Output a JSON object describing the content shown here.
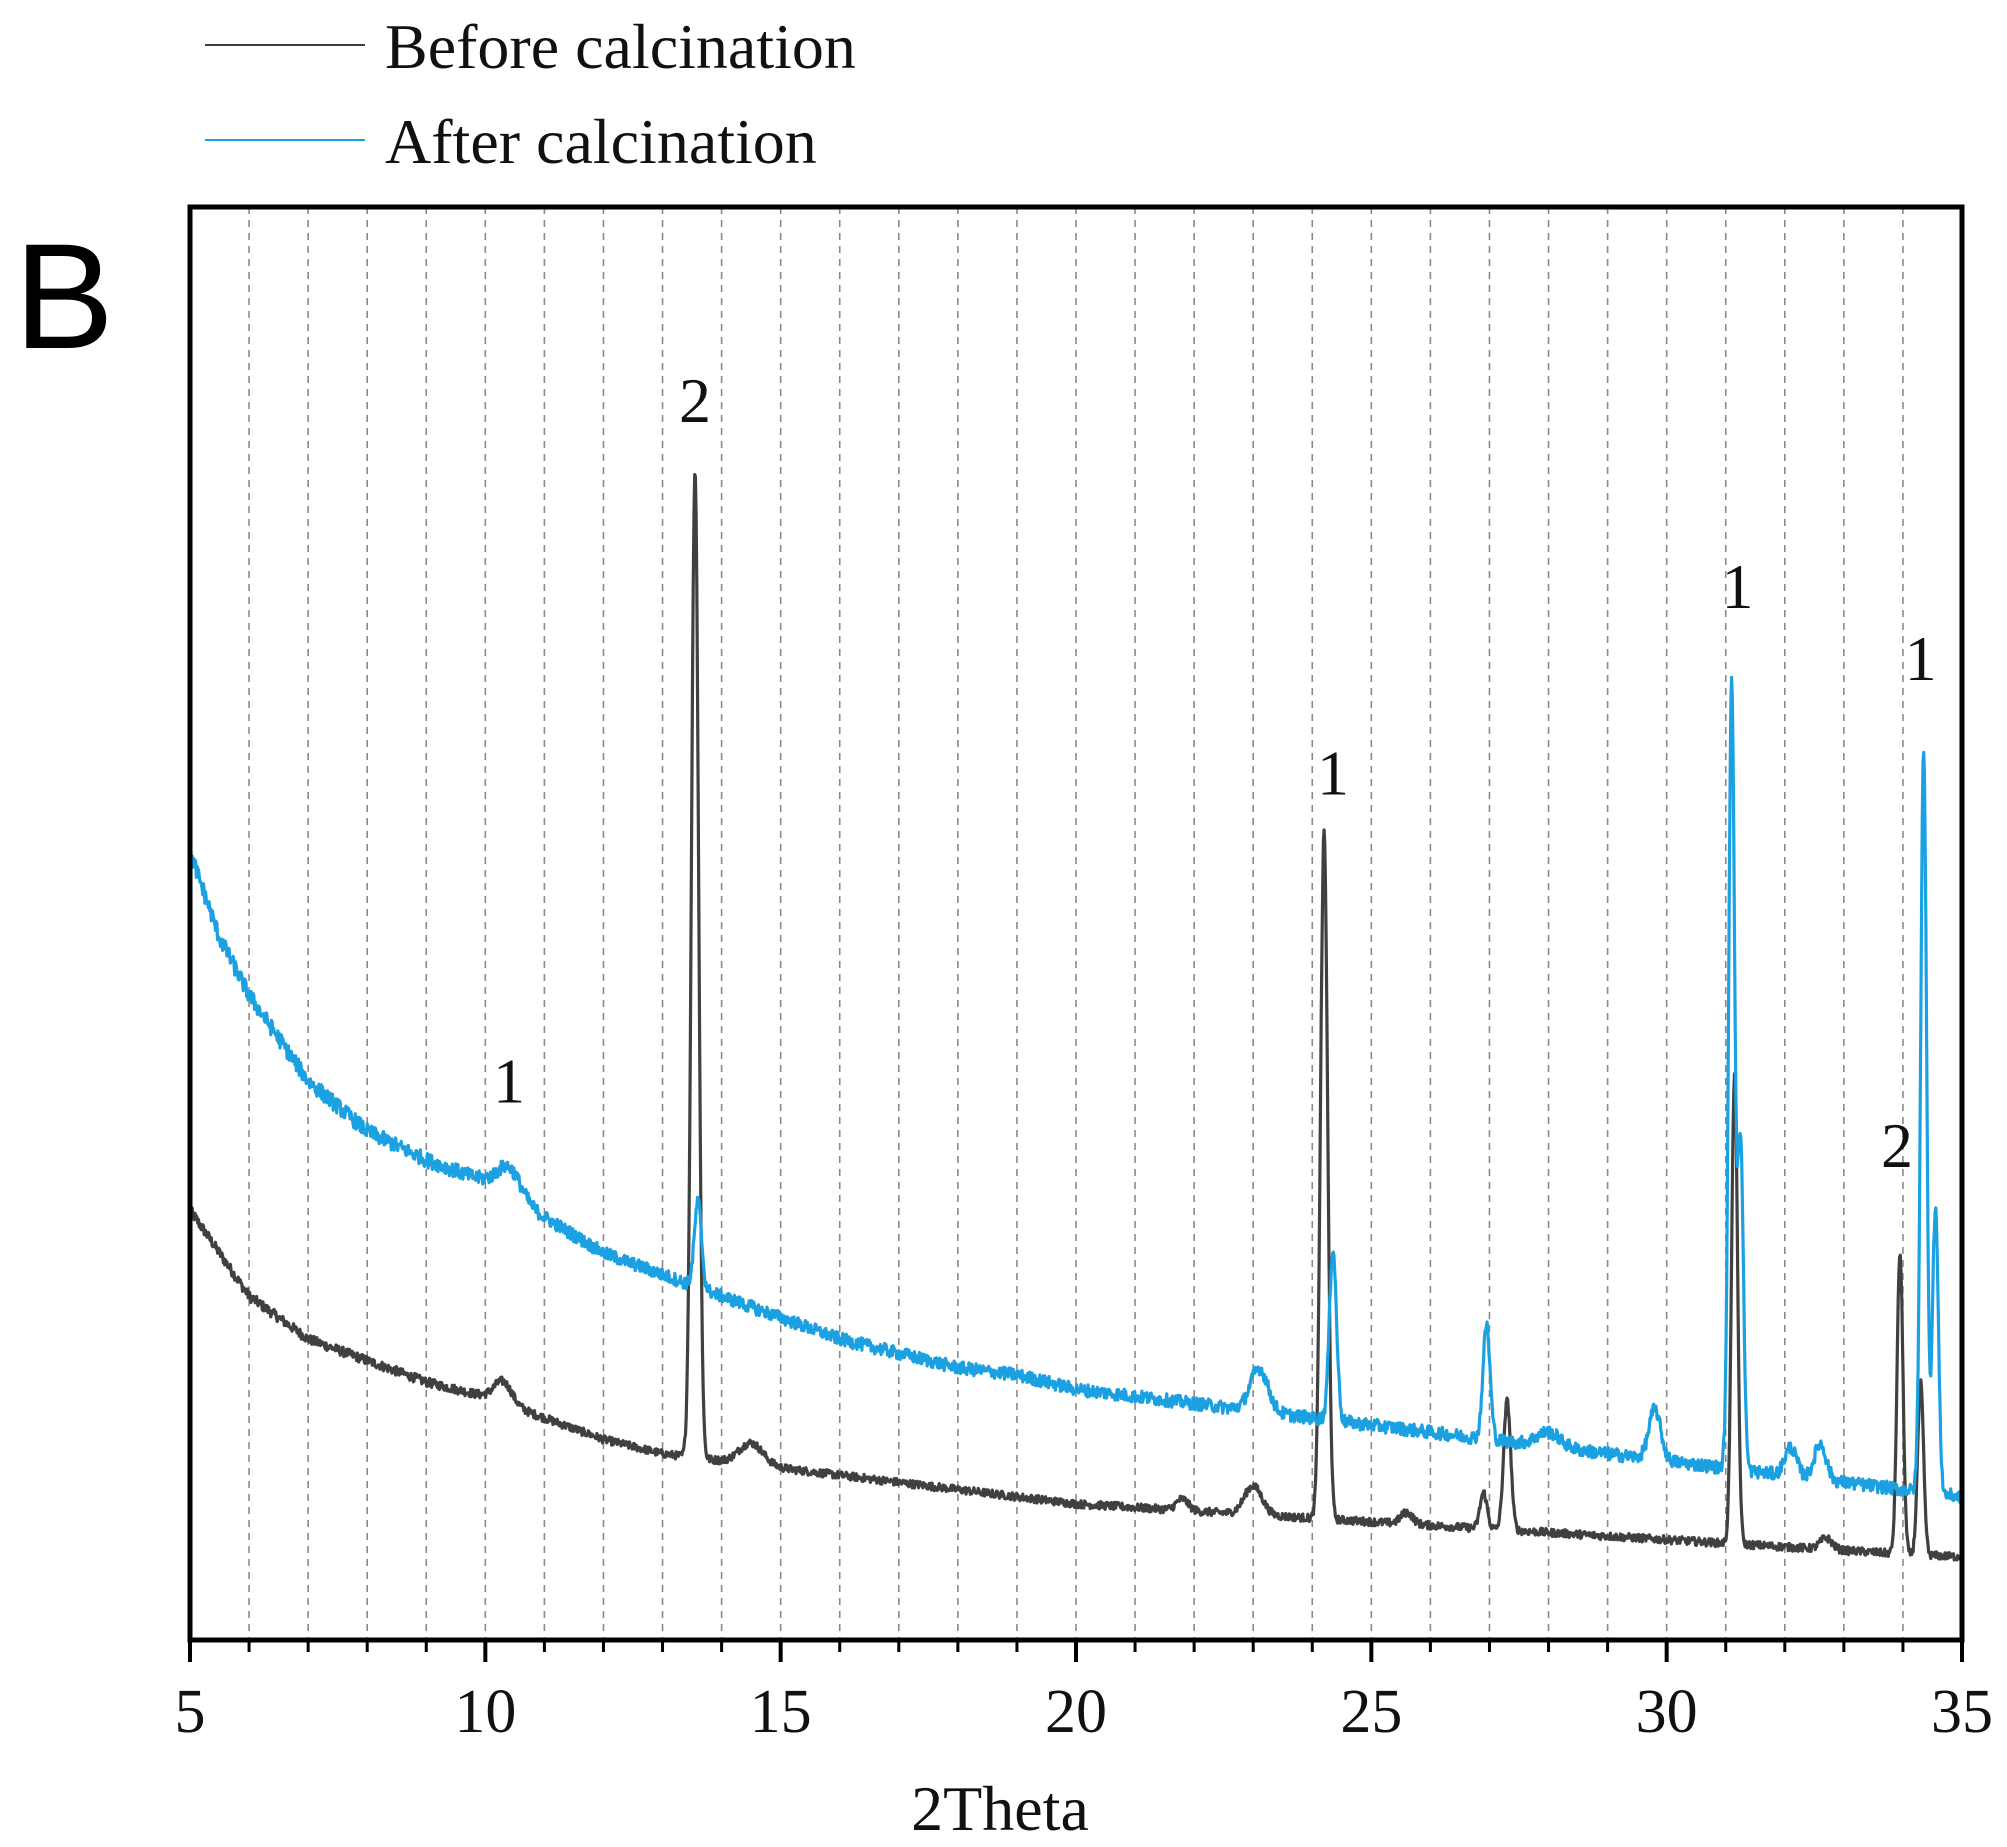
{
  "chart_data": {
    "type": "line",
    "panel_label": "B",
    "title": "",
    "xlabel": "2Theta",
    "ylabel": "",
    "xlim": [
      5,
      35
    ],
    "ylim": [
      0,
      100
    ],
    "xticks": [
      5,
      10,
      15,
      20,
      25,
      30,
      35
    ],
    "xtick_labels": [
      "5",
      "10",
      "15",
      "20",
      "25",
      "30",
      "35"
    ],
    "minor_xticks": [
      6,
      7,
      8,
      9,
      11,
      12,
      13,
      14,
      16,
      17,
      18,
      19,
      21,
      22,
      23,
      24,
      26,
      27,
      28,
      29,
      31,
      32,
      33,
      34
    ],
    "grid": "vertical dashed at every integer 2Theta",
    "legend_position": "top-left, above plot",
    "series": [
      {
        "name": "Before calcination",
        "color": "#404040",
        "baseline": [
          [
            5,
            30
          ],
          [
            6,
            24
          ],
          [
            7,
            21
          ],
          [
            8,
            19.5
          ],
          [
            9,
            18
          ],
          [
            10,
            17
          ],
          [
            11,
            15.5
          ],
          [
            12,
            14
          ],
          [
            13,
            13
          ],
          [
            14,
            12.5
          ],
          [
            16,
            11.5
          ],
          [
            18,
            10.5
          ],
          [
            20,
            9.5
          ],
          [
            22,
            9
          ],
          [
            24,
            8.5
          ],
          [
            26,
            8
          ],
          [
            28,
            7.5
          ],
          [
            30,
            7
          ],
          [
            32,
            6.5
          ],
          [
            34,
            6
          ],
          [
            35,
            5.8
          ]
        ],
        "peaks": [
          [
            10.3,
            1.5,
            0.15
          ],
          [
            13.55,
            69,
            0.06
          ],
          [
            14.5,
            1.5,
            0.2
          ],
          [
            21.8,
            0.8,
            0.1
          ],
          [
            23.0,
            2,
            0.15
          ],
          [
            24.2,
            48,
            0.06
          ],
          [
            25.6,
            0.8,
            0.1
          ],
          [
            26.9,
            2.5,
            0.06
          ],
          [
            27.3,
            9,
            0.06
          ],
          [
            31.15,
            33,
            0.05
          ],
          [
            32.7,
            0.8,
            0.1
          ],
          [
            33.95,
            21,
            0.05
          ],
          [
            34.3,
            12,
            0.05
          ]
        ]
      },
      {
        "name": "After calcination",
        "color": "#1BA1E2",
        "baseline": [
          [
            5,
            55
          ],
          [
            5.5,
            49
          ],
          [
            6,
            45
          ],
          [
            7,
            39
          ],
          [
            8,
            35.5
          ],
          [
            9,
            33.5
          ],
          [
            10,
            32
          ],
          [
            11,
            29.5
          ],
          [
            12,
            27
          ],
          [
            13,
            25.5
          ],
          [
            14,
            24
          ],
          [
            15,
            22.5
          ],
          [
            16,
            21
          ],
          [
            17,
            20
          ],
          [
            18,
            19
          ],
          [
            19,
            18.5
          ],
          [
            20,
            17.5
          ],
          [
            21,
            17
          ],
          [
            22,
            16.5
          ],
          [
            23,
            16
          ],
          [
            24,
            15.5
          ],
          [
            25,
            15
          ],
          [
            26,
            14.5
          ],
          [
            27,
            14
          ],
          [
            28,
            13.5
          ],
          [
            29,
            13
          ],
          [
            30,
            12.5
          ],
          [
            31,
            12
          ],
          [
            32,
            11.5
          ],
          [
            33,
            11
          ],
          [
            34,
            10.5
          ],
          [
            35,
            10
          ]
        ],
        "peaks": [
          [
            10.4,
            2,
            0.2
          ],
          [
            13.6,
            6,
            0.06
          ],
          [
            23.1,
            3,
            0.15
          ],
          [
            24.35,
            12,
            0.06
          ],
          [
            26.95,
            8,
            0.06
          ],
          [
            28.0,
            1,
            0.2
          ],
          [
            29.8,
            3.5,
            0.1
          ],
          [
            31.1,
            55,
            0.05
          ],
          [
            31.25,
            23,
            0.05
          ],
          [
            32.1,
            2,
            0.1
          ],
          [
            32.6,
            2.5,
            0.1
          ],
          [
            34.35,
            52,
            0.05
          ],
          [
            34.55,
            20,
            0.05
          ]
        ]
      }
    ],
    "annotations": [
      {
        "text": "1",
        "x": 10.4,
        "y": 37.5
      },
      {
        "text": "2",
        "x": 13.55,
        "y": 85
      },
      {
        "text": "1",
        "x": 24.35,
        "y": 59
      },
      {
        "text": "1",
        "x": 31.2,
        "y": 72
      },
      {
        "text": "1",
        "x": 34.3,
        "y": 67
      },
      {
        "text": "2",
        "x": 33.9,
        "y": 33
      }
    ]
  }
}
